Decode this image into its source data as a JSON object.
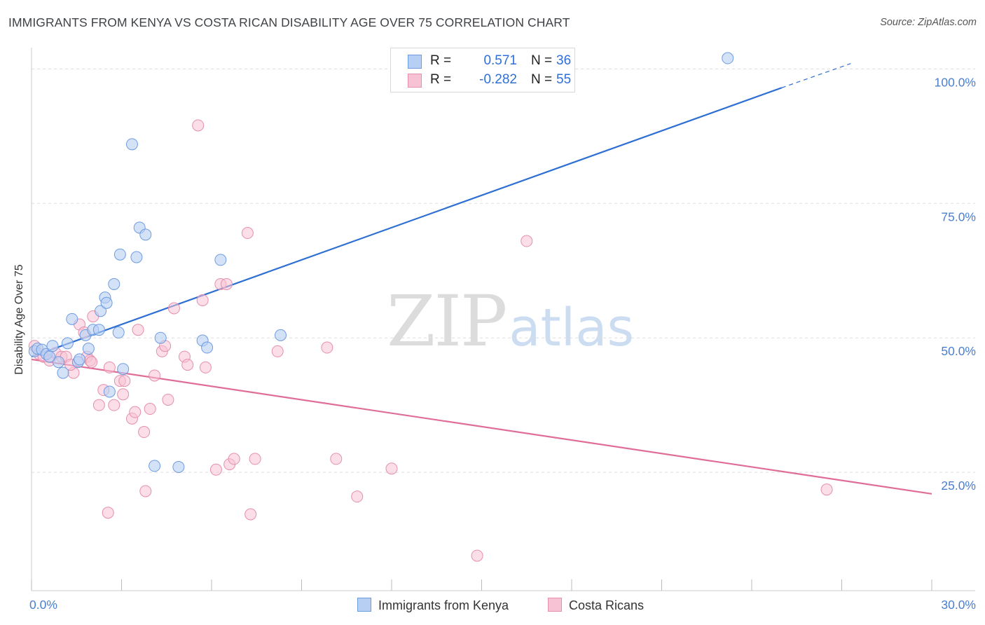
{
  "header": {
    "title": "IMMIGRANTS FROM KENYA VS COSTA RICAN DISABILITY AGE OVER 75 CORRELATION CHART",
    "source": "Source: ZipAtlas.com"
  },
  "watermark": {
    "zip": "ZIP",
    "atlas": "atlas"
  },
  "legend": {
    "rows": [
      {
        "r_label": "R =",
        "r_value": "0.571",
        "n_label": "N =",
        "n_value": "36"
      },
      {
        "r_label": "R =",
        "r_value": "-0.282",
        "n_label": "N =",
        "n_value": "55"
      }
    ]
  },
  "bottom_legend": {
    "series_a": "Immigrants from Kenya",
    "series_b": "Costa Ricans"
  },
  "colors": {
    "kenya_fill": "#b7cff3",
    "kenya_stroke": "#6d9be0",
    "kenya_line": "#2d6fd2",
    "costa_fill": "#f7c3d4",
    "costa_stroke": "#e58fae",
    "costa_line": "#e06d98",
    "tick_text": "#4a7fd0",
    "grid": "#dddddd"
  },
  "chart_data": {
    "type": "scatter",
    "title": "IMMIGRANTS FROM KENYA VS COSTA RICAN DISABILITY AGE OVER 75 CORRELATION CHART",
    "xlabel": "",
    "ylabel": "Disability Age Over 75",
    "xlim": [
      0,
      30
    ],
    "ylim": [
      3,
      105
    ],
    "x_tick_labels": [
      {
        "value": 0,
        "label": "0.0%"
      },
      {
        "value": 30,
        "label": "30.0%"
      }
    ],
    "y_tick_labels": [
      {
        "value": 100,
        "label": "100.0%"
      },
      {
        "value": 75,
        "label": "75.0%"
      },
      {
        "value": 50,
        "label": "50.0%"
      },
      {
        "value": 25,
        "label": "25.0%"
      }
    ],
    "y_gridlines": [
      100,
      75,
      50,
      25
    ],
    "x_minor_ticks": [
      0,
      3,
      6,
      9,
      12,
      15,
      18,
      21,
      24,
      27,
      30
    ],
    "grid": true,
    "legend_position": "top-center",
    "series": [
      {
        "name": "Immigrants from Kenya",
        "r": 0.571,
        "n": 36,
        "trend": {
          "x": [
            0,
            25,
            27.3
          ],
          "y": [
            46.5,
            96.5,
            101
          ]
        },
        "points": [
          [
            0.1,
            47.5
          ],
          [
            0.2,
            48
          ],
          [
            0.35,
            47.8
          ],
          [
            0.5,
            47
          ],
          [
            0.7,
            48.5
          ],
          [
            0.9,
            45.5
          ],
          [
            1.05,
            43.5
          ],
          [
            1.2,
            49
          ],
          [
            1.35,
            53.5
          ],
          [
            1.55,
            45.5
          ],
          [
            1.8,
            50.5
          ],
          [
            1.9,
            48
          ],
          [
            2.05,
            51.5
          ],
          [
            2.25,
            51.5
          ],
          [
            2.3,
            55
          ],
          [
            2.45,
            57.5
          ],
          [
            2.5,
            56.5
          ],
          [
            2.6,
            40
          ],
          [
            2.75,
            60
          ],
          [
            2.9,
            51
          ],
          [
            2.95,
            65.5
          ],
          [
            3.05,
            44.2
          ],
          [
            3.35,
            86
          ],
          [
            3.5,
            65
          ],
          [
            3.6,
            70.5
          ],
          [
            3.8,
            69.2
          ],
          [
            4.1,
            26.2
          ],
          [
            4.3,
            50
          ],
          [
            4.9,
            26
          ],
          [
            5.7,
            49.5
          ],
          [
            5.85,
            48.2
          ],
          [
            6.3,
            64.5
          ],
          [
            8.3,
            50.5
          ],
          [
            23.2,
            102
          ],
          [
            1.6,
            46
          ],
          [
            0.6,
            46.5
          ]
        ]
      },
      {
        "name": "Costa Ricans",
        "r": -0.282,
        "n": 55,
        "trend": {
          "x": [
            0,
            30
          ],
          "y": [
            46,
            21
          ]
        },
        "points": [
          [
            0.1,
            48.5
          ],
          [
            0.25,
            47
          ],
          [
            0.4,
            46.5
          ],
          [
            0.6,
            45.8
          ],
          [
            0.8,
            47.2
          ],
          [
            1.0,
            46.5
          ],
          [
            1.15,
            46.5
          ],
          [
            1.4,
            43.5
          ],
          [
            1.6,
            52.5
          ],
          [
            1.75,
            51
          ],
          [
            1.85,
            46.5
          ],
          [
            1.95,
            45.8
          ],
          [
            2.05,
            54
          ],
          [
            2.25,
            37.5
          ],
          [
            2.4,
            40.3
          ],
          [
            2.55,
            17.5
          ],
          [
            2.6,
            44.5
          ],
          [
            2.75,
            37.5
          ],
          [
            2.95,
            42
          ],
          [
            3.05,
            39.5
          ],
          [
            3.1,
            42
          ],
          [
            3.35,
            35
          ],
          [
            3.45,
            36.2
          ],
          [
            3.55,
            51.5
          ],
          [
            3.75,
            32.5
          ],
          [
            3.8,
            21.5
          ],
          [
            3.95,
            36.8
          ],
          [
            4.1,
            43
          ],
          [
            4.35,
            47.5
          ],
          [
            4.45,
            48.5
          ],
          [
            4.55,
            38.5
          ],
          [
            4.75,
            55.5
          ],
          [
            5.1,
            46.5
          ],
          [
            5.2,
            45
          ],
          [
            5.55,
            89.5
          ],
          [
            5.7,
            57
          ],
          [
            6.15,
            25.5
          ],
          [
            6.3,
            60
          ],
          [
            6.5,
            60
          ],
          [
            6.6,
            26.5
          ],
          [
            6.75,
            27.5
          ],
          [
            7.2,
            69.5
          ],
          [
            7.3,
            17.2
          ],
          [
            7.45,
            27.5
          ],
          [
            8.2,
            47.5
          ],
          [
            9.85,
            48.2
          ],
          [
            10.15,
            27.5
          ],
          [
            10.85,
            20.5
          ],
          [
            12.0,
            25.7
          ],
          [
            14.85,
            9.5
          ],
          [
            16.5,
            68
          ],
          [
            26.5,
            21.8
          ],
          [
            1.3,
            45
          ],
          [
            2.0,
            45.5
          ],
          [
            5.8,
            44.5
          ]
        ]
      }
    ]
  }
}
